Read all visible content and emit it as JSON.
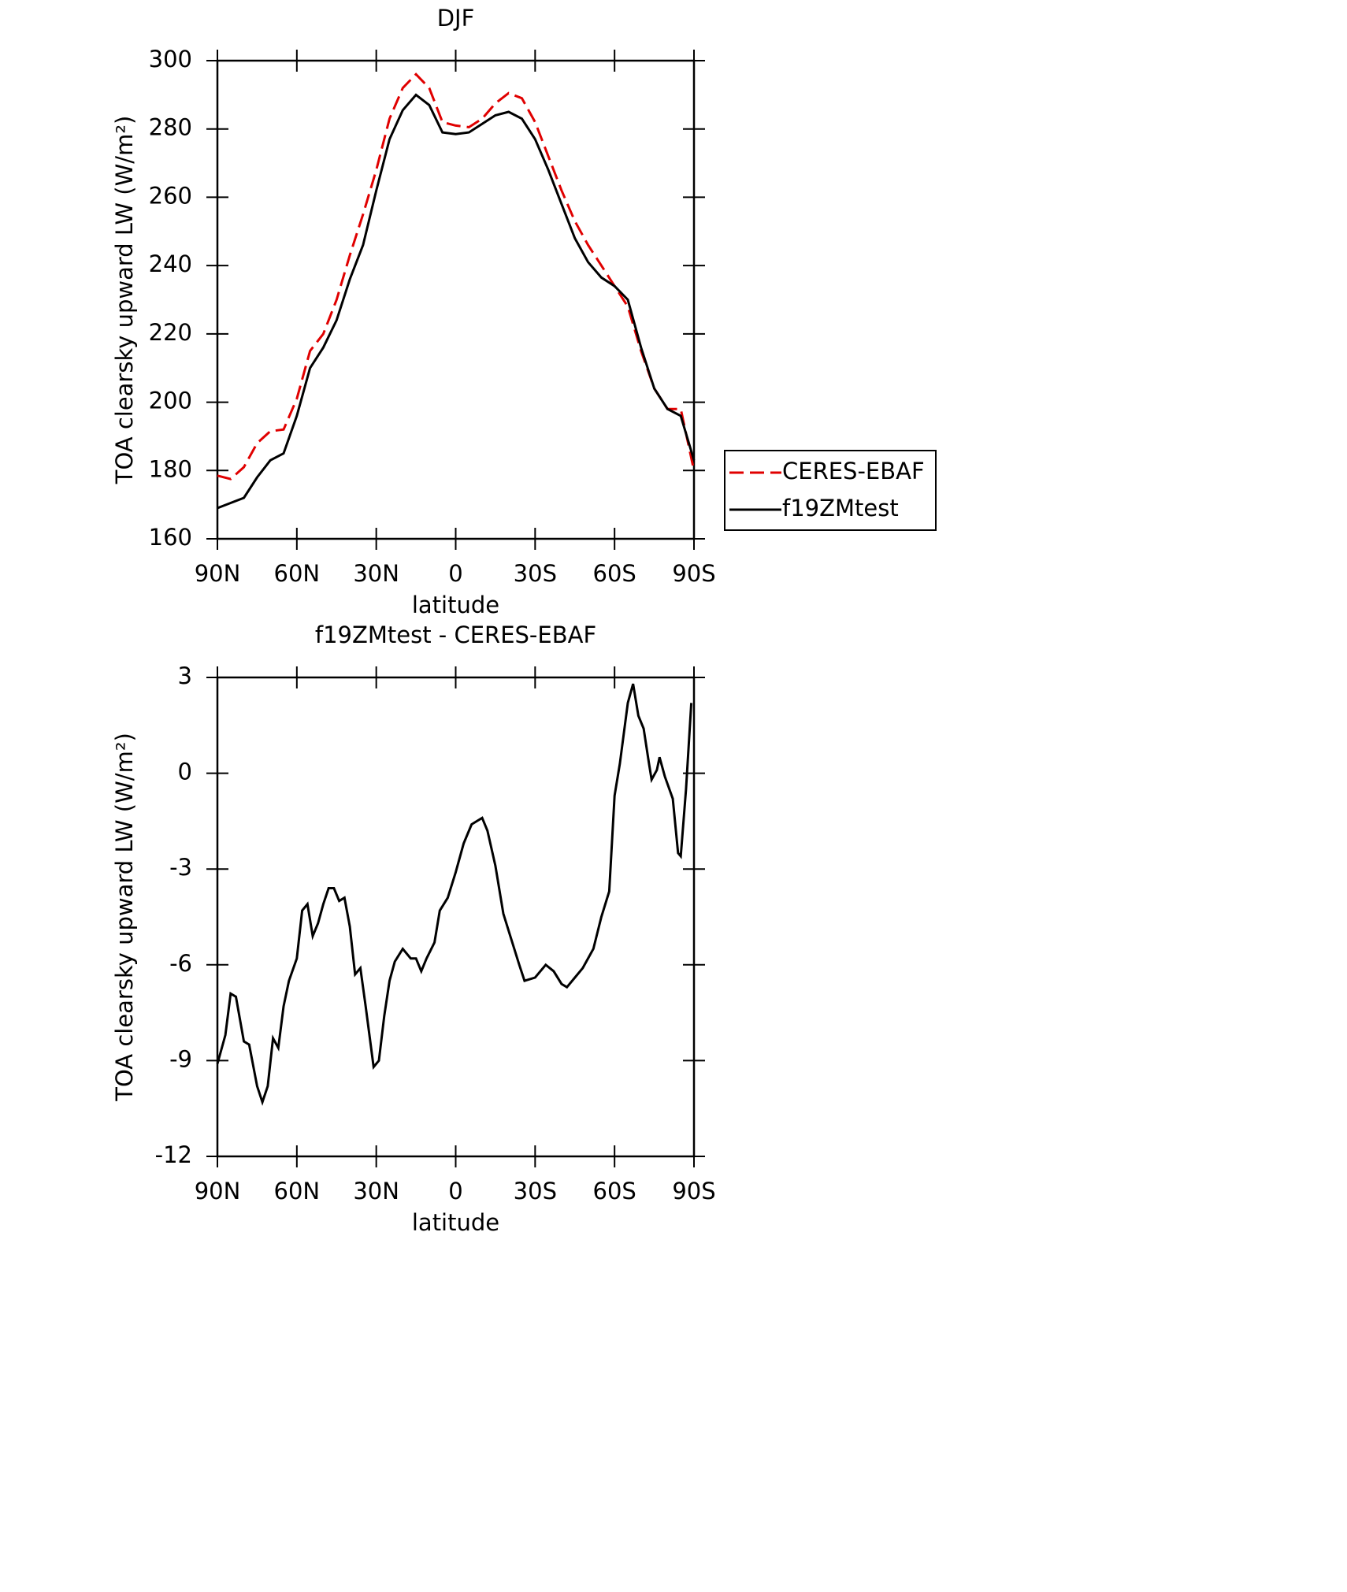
{
  "chart_data": [
    {
      "type": "line",
      "title": "DJF",
      "xlabel": "latitude",
      "ylabel": "TOA clearsky upward LW (W/m²)",
      "x": [
        90,
        85,
        80,
        75,
        70,
        65,
        60,
        55,
        50,
        45,
        40,
        35,
        30,
        25,
        20,
        15,
        10,
        5,
        0,
        -5,
        -10,
        -15,
        -20,
        -25,
        -30,
        -35,
        -40,
        -45,
        -50,
        -55,
        -60,
        -65,
        -70,
        -75,
        -80,
        -85,
        -90
      ],
      "series": [
        {
          "name": "CERES-EBAF",
          "color": "#e00000",
          "linestyle": "dashed",
          "values": [
            178.5,
            177.5,
            181,
            188,
            191.5,
            192,
            201,
            215,
            220,
            230,
            243,
            255,
            268,
            283,
            292,
            296,
            292,
            282,
            281,
            280.5,
            283,
            287.5,
            290.5,
            289,
            282,
            272,
            262,
            253,
            246,
            240,
            234,
            228,
            215,
            204,
            198,
            198,
            180
          ]
        },
        {
          "name": "f19ZMtest",
          "color": "#000000",
          "linestyle": "solid",
          "values": [
            169,
            170.5,
            172,
            178,
            183,
            185,
            196,
            210,
            216,
            224,
            236,
            246,
            262,
            277,
            285.5,
            290,
            287,
            279,
            278.5,
            279,
            281.5,
            284,
            285,
            283,
            277,
            268,
            258,
            248,
            241,
            236.5,
            234,
            230,
            216,
            204,
            198,
            196,
            183
          ]
        }
      ],
      "xlim": [
        90,
        -90
      ],
      "xticks": [
        {
          "value": 90,
          "label": "90N"
        },
        {
          "value": 60,
          "label": "60N"
        },
        {
          "value": 30,
          "label": "30N"
        },
        0,
        {
          "value": -30,
          "label": "30S"
        },
        {
          "value": -60,
          "label": "60S"
        },
        {
          "value": -90,
          "label": "90S"
        }
      ],
      "ylim": [
        160,
        300
      ],
      "yticks": [
        160,
        180,
        200,
        220,
        240,
        260,
        280,
        300
      ],
      "legend": "outside-right"
    },
    {
      "type": "line",
      "title": "f19ZMtest - CERES-EBAF",
      "xlabel": "latitude",
      "ylabel": "TOA clearsky upward LW (W/m²)",
      "x": [
        90,
        87,
        85,
        83,
        80,
        78,
        75,
        73,
        71,
        69,
        67,
        65,
        63,
        60,
        58,
        56,
        54,
        52,
        50,
        48,
        46,
        44,
        42,
        40,
        38,
        36,
        34,
        31,
        29,
        27,
        25,
        23,
        20,
        17,
        15,
        13,
        11,
        8,
        6,
        3,
        0,
        -3,
        -6,
        -8,
        -10,
        -12,
        -15,
        -18,
        -21,
        -24,
        -26,
        -30,
        -34,
        -37,
        -40,
        -42,
        -45,
        -48,
        -52,
        -55,
        -58,
        -60,
        -62,
        -65,
        -67,
        -69,
        -71,
        -73,
        -74,
        -76,
        -77,
        -79,
        -82,
        -84,
        -85,
        -87,
        -89
      ],
      "values": [
        -9.1,
        -8.2,
        -6.9,
        -7.0,
        -8.4,
        -8.5,
        -9.8,
        -10.3,
        -9.8,
        -8.3,
        -8.6,
        -7.3,
        -6.5,
        -5.8,
        -4.3,
        -4.1,
        -5.1,
        -4.7,
        -4.1,
        -3.6,
        -3.6,
        -4.0,
        -3.9,
        -4.8,
        -6.3,
        -6.1,
        -7.3,
        -9.2,
        -9.0,
        -7.6,
        -6.5,
        -5.9,
        -5.5,
        -5.8,
        -5.8,
        -6.2,
        -5.8,
        -5.3,
        -4.3,
        -3.9,
        -3.1,
        -2.2,
        -1.6,
        -1.5,
        -1.4,
        -1.8,
        -2.9,
        -4.4,
        -5.2,
        -6.0,
        -6.5,
        -6.4,
        -6.0,
        -6.2,
        -6.6,
        -6.7,
        -6.4,
        -6.1,
        -5.5,
        -4.5,
        -3.7,
        -0.7,
        0.3,
        2.2,
        2.8,
        1.8,
        1.4,
        0.3,
        -0.2,
        0.1,
        0.5,
        -0.1,
        -0.8,
        -2.5,
        -2.6,
        -0.5,
        2.2
      ],
      "color": "#000000",
      "xlim": [
        90,
        -90
      ],
      "xticks": [
        {
          "value": 90,
          "label": "90N"
        },
        {
          "value": 60,
          "label": "60N"
        },
        {
          "value": 30,
          "label": "30N"
        },
        0,
        {
          "value": -30,
          "label": "30S"
        },
        {
          "value": -60,
          "label": "60S"
        },
        {
          "value": -90,
          "label": "90S"
        }
      ],
      "ylim": [
        -12,
        3
      ],
      "yticks": [
        -12,
        -9,
        -6,
        -3,
        0,
        3
      ]
    }
  ]
}
